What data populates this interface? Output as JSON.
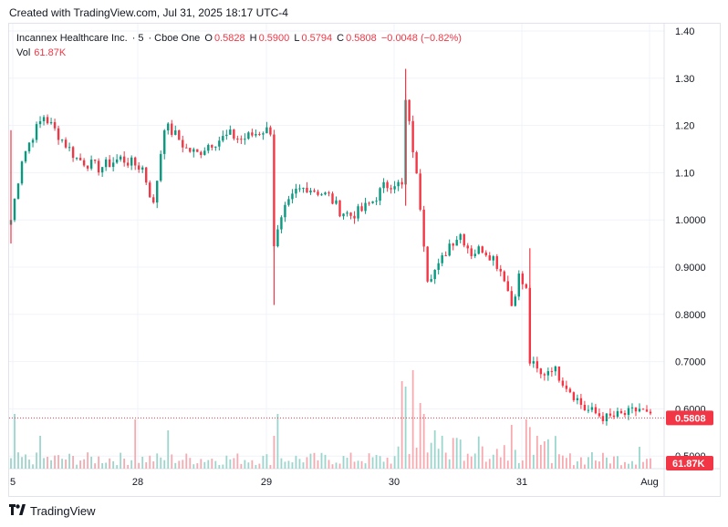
{
  "header": {
    "created_text": "Created with TradingView.com, Jul 31, 2025 18:17 UTC-4"
  },
  "legend": {
    "symbol": "Incannex Healthcare Inc.",
    "interval": "5",
    "exchange": "Cboe One",
    "o_label": "O",
    "o_value": "0.5828",
    "h_label": "H",
    "h_value": "0.5900",
    "l_label": "L",
    "l_value": "0.5794",
    "c_label": "C",
    "c_value": "0.5808",
    "change": "−0.0048 (−0.82%)",
    "vol_label": "Vol",
    "vol_value": "61.87K"
  },
  "footer": {
    "brand": "TradingView"
  },
  "colors": {
    "up": "#089981",
    "down": "#f23645",
    "upVol": "#9bd5cd",
    "downVol": "#f7a9b0",
    "grid": "#f0f3fa"
  },
  "chart_data": {
    "type": "candlestick",
    "y_axis": {
      "ticks": [
        "1.40",
        "1.30",
        "1.20",
        "1.10",
        "1.0000",
        "0.9000",
        "0.8000",
        "0.7000",
        "0.6000",
        "0.5000"
      ],
      "range": [
        0.48,
        1.4
      ]
    },
    "x_axis": {
      "ticks": [
        "5",
        "28",
        "29",
        "30",
        "31",
        "Aug"
      ]
    },
    "last_price_label": "0.5808",
    "last_volume_label": "61.87K",
    "close_path": [
      [
        0,
        1.0
      ],
      [
        3,
        1.13
      ],
      [
        6,
        1.18
      ],
      [
        9,
        1.22
      ],
      [
        12,
        1.19
      ],
      [
        15,
        1.16
      ],
      [
        18,
        1.13
      ],
      [
        21,
        1.12
      ],
      [
        24,
        1.11
      ],
      [
        27,
        1.12
      ],
      [
        30,
        1.13
      ],
      [
        33,
        1.12
      ],
      [
        36,
        1.11
      ],
      [
        39,
        1.03
      ],
      [
        42,
        1.2
      ],
      [
        45,
        1.18
      ],
      [
        48,
        1.15
      ],
      [
        51,
        1.14
      ],
      [
        54,
        1.16
      ],
      [
        57,
        1.17
      ],
      [
        60,
        1.18
      ],
      [
        63,
        1.17
      ],
      [
        66,
        1.18
      ],
      [
        69,
        1.19
      ],
      [
        71,
        1.19
      ],
      [
        72,
        0.95
      ],
      [
        75,
        1.02
      ],
      [
        78,
        1.06
      ],
      [
        81,
        1.07
      ],
      [
        84,
        1.06
      ],
      [
        87,
        1.05
      ],
      [
        90,
        1.02
      ],
      [
        93,
        1.01
      ],
      [
        96,
        1.02
      ],
      [
        99,
        1.04
      ],
      [
        102,
        1.07
      ],
      [
        105,
        1.08
      ],
      [
        107,
        1.07
      ],
      [
        108,
        1.25
      ],
      [
        110,
        1.15
      ],
      [
        112,
        1.03
      ],
      [
        114,
        0.88
      ],
      [
        117,
        0.9
      ],
      [
        120,
        0.95
      ],
      [
        123,
        0.97
      ],
      [
        126,
        0.93
      ],
      [
        129,
        0.94
      ],
      [
        132,
        0.92
      ],
      [
        135,
        0.88
      ],
      [
        137,
        0.82
      ],
      [
        139,
        0.88
      ],
      [
        141,
        0.85
      ],
      [
        142,
        0.7
      ],
      [
        145,
        0.67
      ],
      [
        148,
        0.69
      ],
      [
        151,
        0.66
      ],
      [
        154,
        0.63
      ],
      [
        157,
        0.6
      ],
      [
        160,
        0.59
      ],
      [
        163,
        0.58
      ],
      [
        166,
        0.585
      ],
      [
        169,
        0.59
      ],
      [
        172,
        0.6
      ],
      [
        175,
        0.58
      ]
    ],
    "volume_spikes": [
      [
        1,
        0.5
      ],
      [
        8,
        0.3
      ],
      [
        34,
        0.45
      ],
      [
        43,
        0.35
      ],
      [
        72,
        0.3
      ],
      [
        73,
        0.5
      ],
      [
        107,
        0.8
      ],
      [
        108,
        0.75
      ],
      [
        110,
        0.9
      ],
      [
        112,
        0.6
      ],
      [
        113,
        0.5
      ],
      [
        116,
        0.35
      ],
      [
        118,
        0.3
      ],
      [
        137,
        0.4
      ],
      [
        141,
        0.45
      ],
      [
        142,
        0.38
      ],
      [
        144,
        0.3
      ],
      [
        146,
        0.25
      ],
      [
        159,
        0.15
      ],
      [
        172,
        0.2
      ]
    ]
  }
}
